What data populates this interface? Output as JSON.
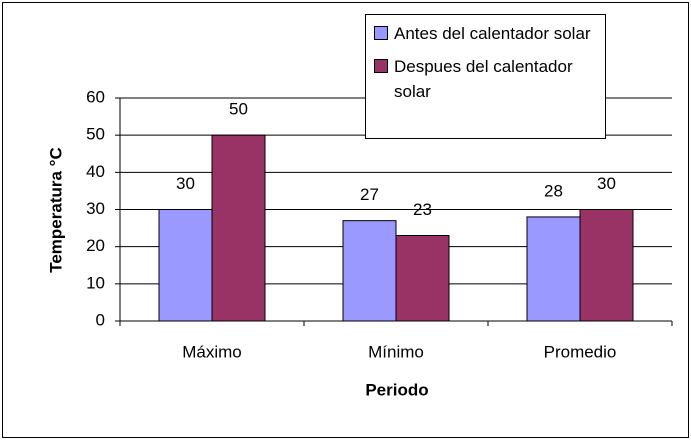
{
  "chart_data": {
    "type": "bar",
    "categories": [
      "Máximo",
      "Mínimo",
      "Promedio"
    ],
    "series": [
      {
        "name": "Antes del calentador solar",
        "color": "#9999ff",
        "values": [
          30,
          27,
          28
        ]
      },
      {
        "name": "Despues del calentador solar",
        "color": "#993366",
        "values": [
          50,
          23,
          30
        ]
      }
    ],
    "ylim": [
      0,
      60
    ],
    "yticks": [
      0,
      10,
      20,
      30,
      40,
      50,
      60
    ],
    "grid": true,
    "xlabel": "Periodo",
    "ylabel": "Temperatura °C"
  }
}
